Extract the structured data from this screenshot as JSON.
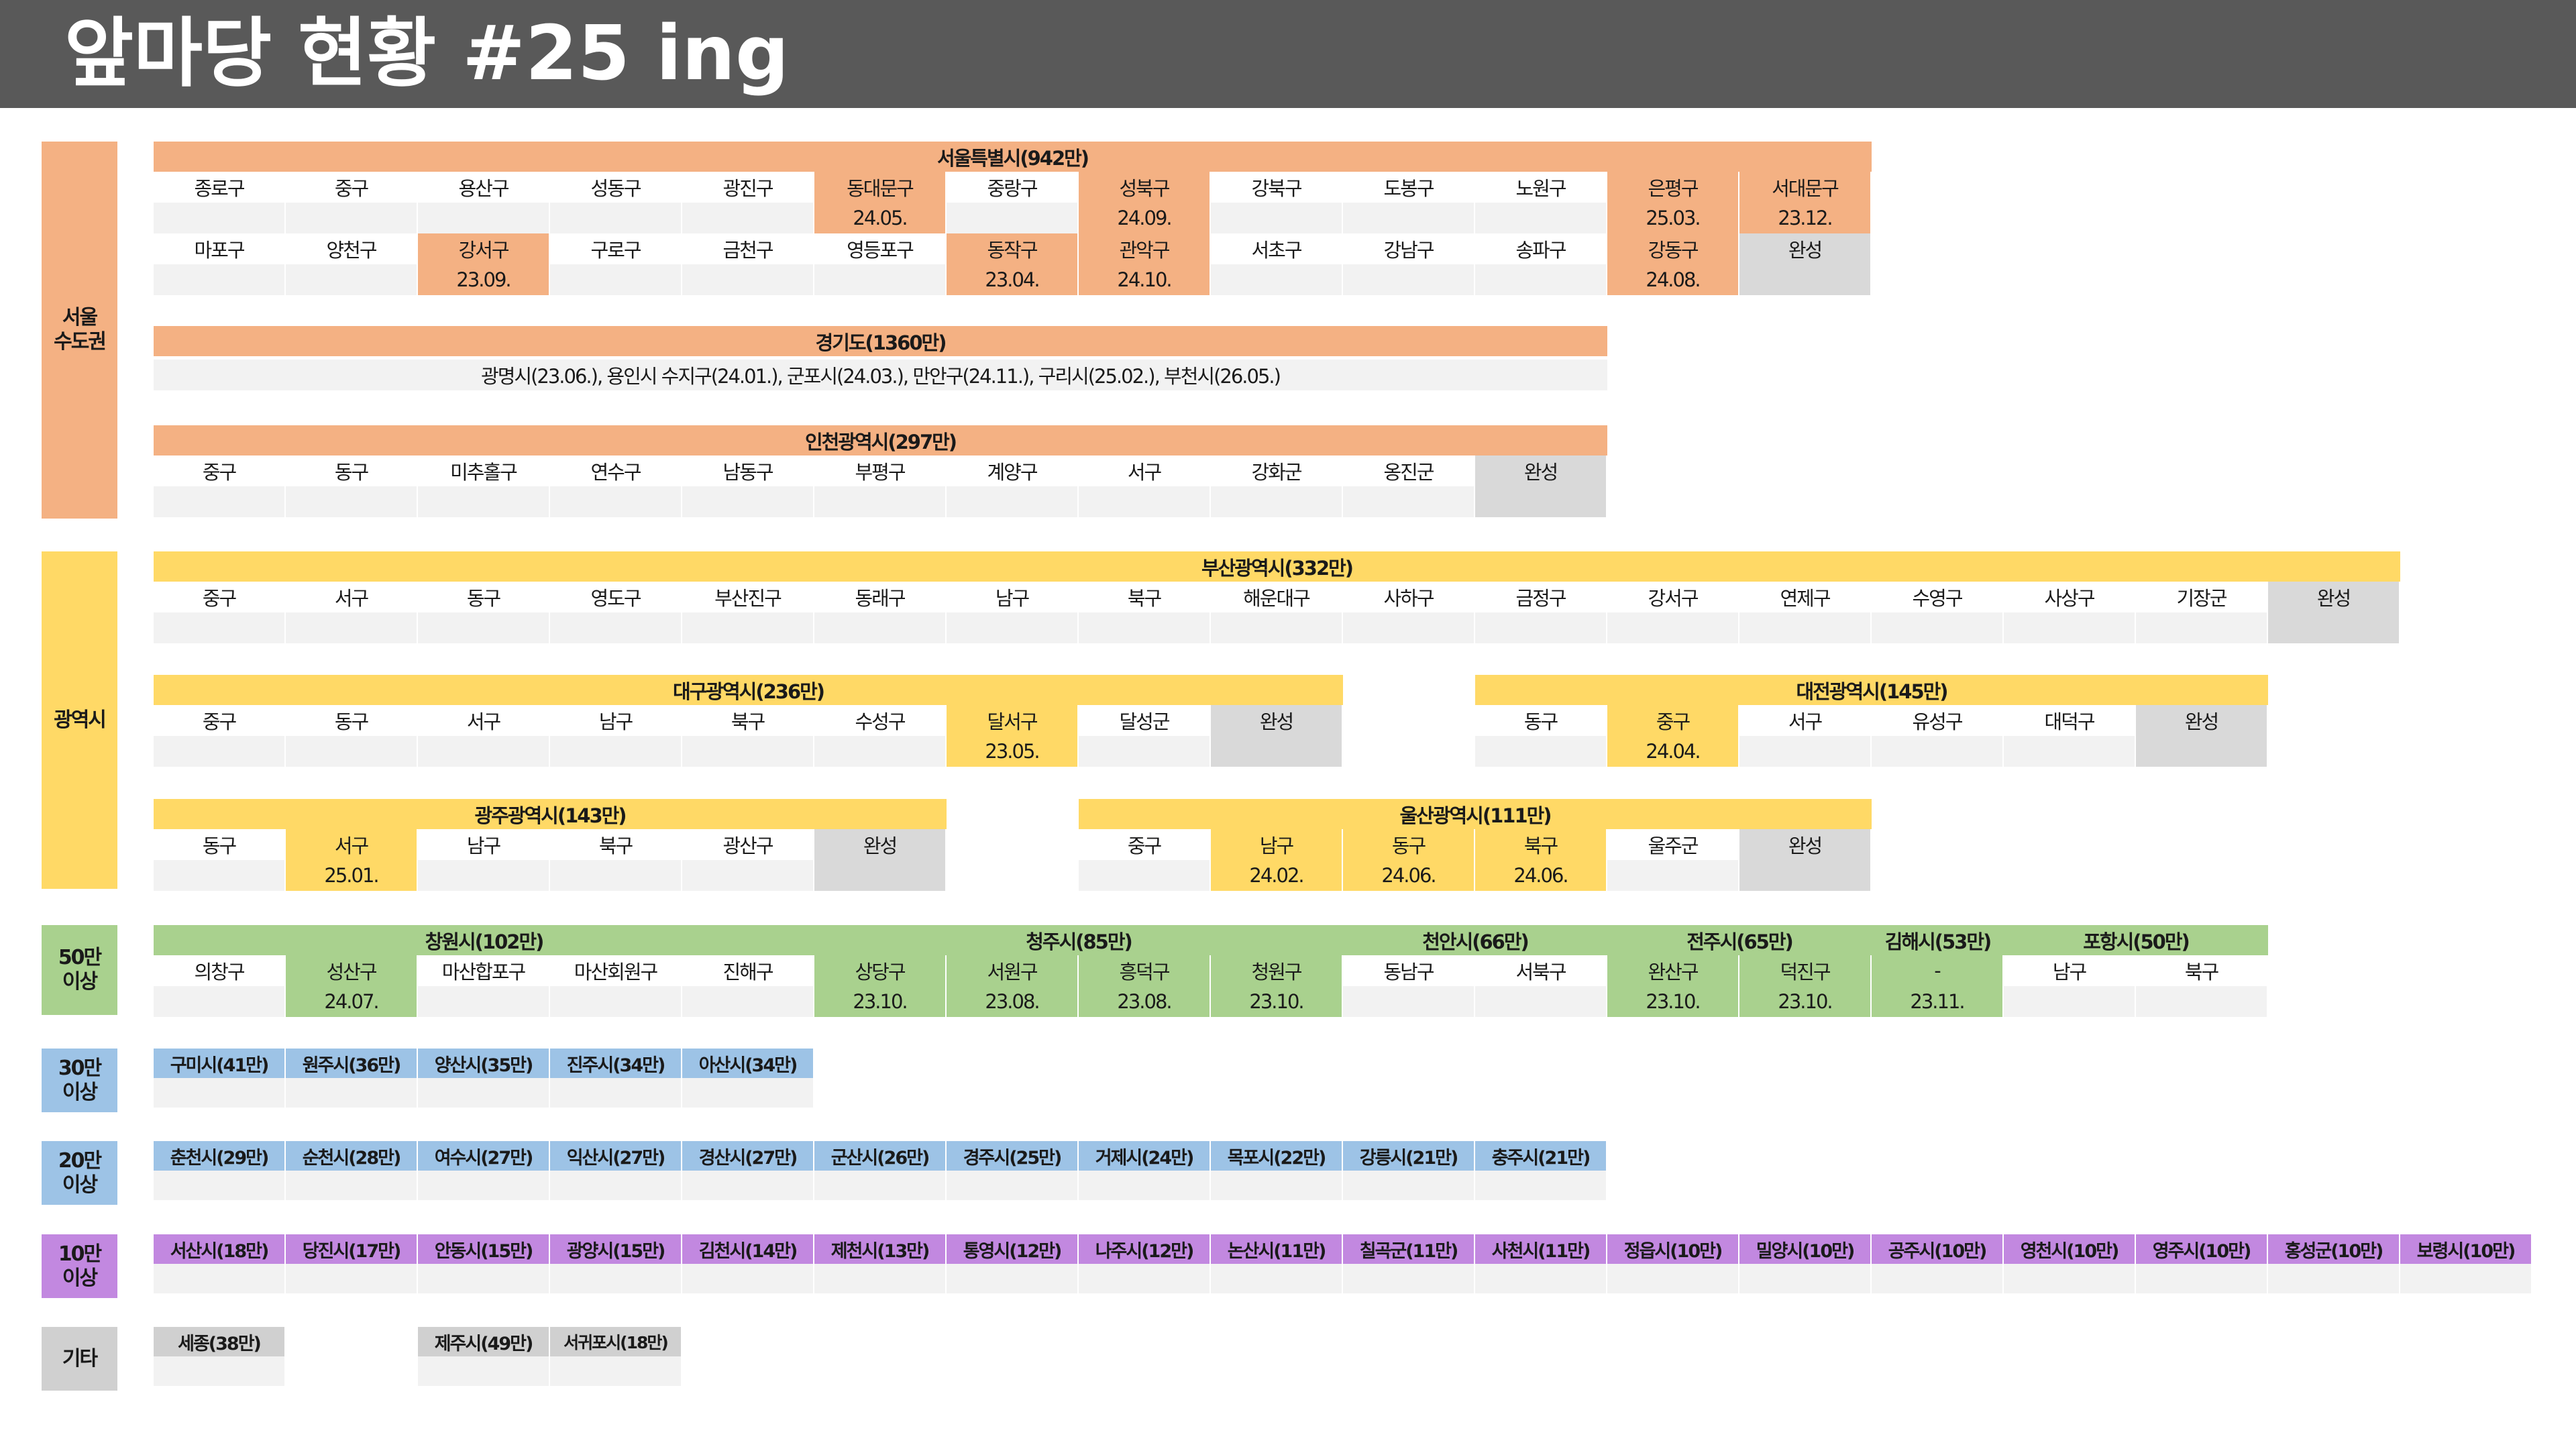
{
  "title": "앞마당 현황 #25 ing",
  "colors": {
    "header_bg": "#595959",
    "empty": "#f2f2f2",
    "done": "#d9d9d9",
    "seoul": "#f4b183",
    "metro": "#ffd966",
    "over50": "#a9d18e",
    "over30": "#9dc3e6",
    "over20": "#9dc3e6",
    "over10": "#c288e0",
    "etc": "#d0d0d0"
  },
  "region_labels": {
    "capital": "서울\n수도권",
    "metro": "광역시",
    "over50": "50만\n이상",
    "over30": "30만\n이상",
    "over20": "20만\n이상",
    "over10": "10만\n이상",
    "etc": "기타"
  },
  "seoul": {
    "title": "서울특별시(942만)",
    "rows": [
      [
        {
          "name": "종로구",
          "date": ""
        },
        {
          "name": "중구",
          "date": ""
        },
        {
          "name": "용산구",
          "date": ""
        },
        {
          "name": "성동구",
          "date": ""
        },
        {
          "name": "광진구",
          "date": ""
        },
        {
          "name": "동대문구",
          "date": "24.05."
        },
        {
          "name": "중랑구",
          "date": ""
        },
        {
          "name": "성북구",
          "date": "24.09."
        },
        {
          "name": "강북구",
          "date": ""
        },
        {
          "name": "도봉구",
          "date": ""
        },
        {
          "name": "노원구",
          "date": ""
        },
        {
          "name": "은평구",
          "date": "25.03."
        },
        {
          "name": "서대문구",
          "date": "23.12."
        }
      ],
      [
        {
          "name": "마포구",
          "date": ""
        },
        {
          "name": "양천구",
          "date": ""
        },
        {
          "name": "강서구",
          "date": "23.09."
        },
        {
          "name": "구로구",
          "date": ""
        },
        {
          "name": "금천구",
          "date": ""
        },
        {
          "name": "영등포구",
          "date": ""
        },
        {
          "name": "동작구",
          "date": "23.04."
        },
        {
          "name": "관악구",
          "date": "24.10."
        },
        {
          "name": "서초구",
          "date": ""
        },
        {
          "name": "강남구",
          "date": ""
        },
        {
          "name": "송파구",
          "date": ""
        },
        {
          "name": "강동구",
          "date": "24.08."
        },
        {
          "name": "완성",
          "date": "",
          "done": true
        }
      ]
    ]
  },
  "gyeonggi": {
    "title": "경기도(1360만)",
    "line": "광명시(23.06.), 용인시 수지구(24.01.), 군포시(24.03.), 만안구(24.11.), 구리시(25.02.), 부천시(26.05.)"
  },
  "incheon": {
    "title": "인천광역시(297만)",
    "rows": [
      [
        {
          "name": "중구",
          "date": ""
        },
        {
          "name": "동구",
          "date": ""
        },
        {
          "name": "미추홀구",
          "date": ""
        },
        {
          "name": "연수구",
          "date": ""
        },
        {
          "name": "남동구",
          "date": ""
        },
        {
          "name": "부평구",
          "date": ""
        },
        {
          "name": "계양구",
          "date": ""
        },
        {
          "name": "서구",
          "date": ""
        },
        {
          "name": "강화군",
          "date": ""
        },
        {
          "name": "옹진군",
          "date": ""
        },
        {
          "name": "완성",
          "date": "",
          "done": true
        }
      ]
    ]
  },
  "busan": {
    "title": "부산광역시(332만)",
    "rows": [
      [
        {
          "name": "중구",
          "date": ""
        },
        {
          "name": "서구",
          "date": ""
        },
        {
          "name": "동구",
          "date": ""
        },
        {
          "name": "영도구",
          "date": ""
        },
        {
          "name": "부산진구",
          "date": ""
        },
        {
          "name": "동래구",
          "date": ""
        },
        {
          "name": "남구",
          "date": ""
        },
        {
          "name": "북구",
          "date": ""
        },
        {
          "name": "해운대구",
          "date": ""
        },
        {
          "name": "사하구",
          "date": ""
        },
        {
          "name": "금정구",
          "date": ""
        },
        {
          "name": "강서구",
          "date": ""
        },
        {
          "name": "연제구",
          "date": ""
        },
        {
          "name": "수영구",
          "date": ""
        },
        {
          "name": "사상구",
          "date": ""
        },
        {
          "name": "기장군",
          "date": ""
        },
        {
          "name": "완성",
          "date": "",
          "done": true
        }
      ]
    ]
  },
  "daegu": {
    "title": "대구광역시(236만)",
    "rows": [
      [
        {
          "name": "중구",
          "date": ""
        },
        {
          "name": "동구",
          "date": ""
        },
        {
          "name": "서구",
          "date": ""
        },
        {
          "name": "남구",
          "date": ""
        },
        {
          "name": "북구",
          "date": ""
        },
        {
          "name": "수성구",
          "date": ""
        },
        {
          "name": "달서구",
          "date": "23.05."
        },
        {
          "name": "달성군",
          "date": ""
        },
        {
          "name": "완성",
          "date": "",
          "done": true
        }
      ]
    ]
  },
  "daejeon": {
    "title": "대전광역시(145만)",
    "rows": [
      [
        {
          "name": "동구",
          "date": ""
        },
        {
          "name": "중구",
          "date": "24.04."
        },
        {
          "name": "서구",
          "date": ""
        },
        {
          "name": "유성구",
          "date": ""
        },
        {
          "name": "대덕구",
          "date": ""
        },
        {
          "name": "완성",
          "date": "",
          "done": true
        }
      ]
    ]
  },
  "gwangju": {
    "title": "광주광역시(143만)",
    "rows": [
      [
        {
          "name": "동구",
          "date": ""
        },
        {
          "name": "서구",
          "date": "25.01."
        },
        {
          "name": "남구",
          "date": ""
        },
        {
          "name": "북구",
          "date": ""
        },
        {
          "name": "광산구",
          "date": ""
        },
        {
          "name": "완성",
          "date": "",
          "done": true
        }
      ]
    ]
  },
  "ulsan": {
    "title": "울산광역시(111만)",
    "rows": [
      [
        {
          "name": "중구",
          "date": ""
        },
        {
          "name": "남구",
          "date": "24.02."
        },
        {
          "name": "동구",
          "date": "24.06."
        },
        {
          "name": "북구",
          "date": "24.06."
        },
        {
          "name": "울주군",
          "date": ""
        },
        {
          "name": "완성",
          "date": "",
          "done": true
        }
      ]
    ]
  },
  "over50": {
    "changwon": {
      "title": "창원시(102만)",
      "cells": [
        {
          "name": "의창구",
          "date": ""
        },
        {
          "name": "성산구",
          "date": "24.07."
        },
        {
          "name": "마산합포구",
          "date": ""
        },
        {
          "name": "마산회원구",
          "date": ""
        },
        {
          "name": "진해구",
          "date": ""
        }
      ]
    },
    "cheongju": {
      "title": "청주시(85만)",
      "cells": [
        {
          "name": "상당구",
          "date": "23.10."
        },
        {
          "name": "서원구",
          "date": "23.08."
        },
        {
          "name": "흥덕구",
          "date": "23.08."
        },
        {
          "name": "청원구",
          "date": "23.10."
        }
      ]
    },
    "cheonan": {
      "title": "천안시(66만)",
      "cells": [
        {
          "name": "동남구",
          "date": ""
        },
        {
          "name": "서북구",
          "date": ""
        }
      ]
    },
    "jeonju": {
      "title": "전주시(65만)",
      "cells": [
        {
          "name": "완산구",
          "date": "23.10."
        },
        {
          "name": "덕진구",
          "date": "23.10."
        }
      ]
    },
    "gimhae": {
      "title": "김해시(53만)",
      "cells": [
        {
          "name": "-",
          "date": "23.11."
        }
      ]
    },
    "pohang": {
      "title": "포항시(50만)",
      "cells": [
        {
          "name": "남구",
          "date": ""
        },
        {
          "name": "북구",
          "date": ""
        }
      ]
    }
  },
  "over30": [
    "구미시(41만)",
    "원주시(36만)",
    "양산시(35만)",
    "진주시(34만)",
    "아산시(34만)"
  ],
  "over20": [
    "춘천시(29만)",
    "순천시(28만)",
    "여수시(27만)",
    "익산시(27만)",
    "경산시(27만)",
    "군산시(26만)",
    "경주시(25만)",
    "거제시(24만)",
    "목포시(22만)",
    "강릉시(21만)",
    "충주시(21만)"
  ],
  "over10": [
    "서산시(18만)",
    "당진시(17만)",
    "안동시(15만)",
    "광양시(15만)",
    "김천시(14만)",
    "제천시(13만)",
    "통영시(12만)",
    "나주시(12만)",
    "논산시(11만)",
    "칠곡군(11만)",
    "사천시(11만)",
    "정읍시(10만)",
    "밀양시(10만)",
    "공주시(10만)",
    "영천시(10만)",
    "영주시(10만)",
    "홍성군(10만)",
    "보령시(10만)"
  ],
  "etc": [
    "세종(38만)",
    "제주시(49만)",
    "서귀포시(18만)"
  ]
}
